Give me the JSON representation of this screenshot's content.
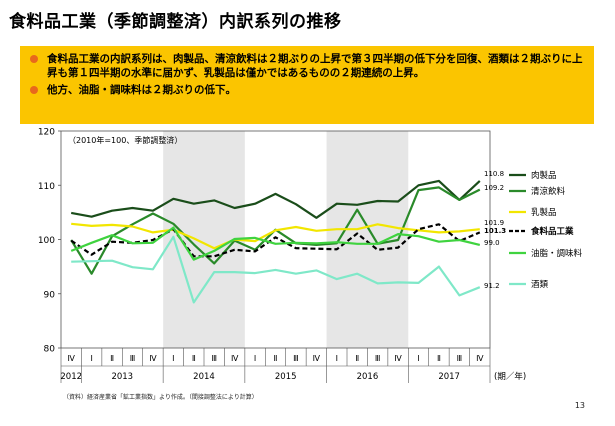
{
  "title": "食料品工業（季節調整済）内訳系列の推移",
  "summary": {
    "bullets": [
      "食料品工業の内訳系列は、肉製品、清涼飲料は２期ぶりの上昇で第３四半期の低下分を回復、酒類は２期ぶりに上昇も第１四半期の水準に届かず、乳製品は僅かではあるものの２期連続の上昇。",
      "他方、油脂・調味料は２期ぶりの低下。"
    ],
    "bullet_color": "#e8681c",
    "background": "#fbc500"
  },
  "chart_data": {
    "type": "line",
    "annotation": "（2010年=100、季節調整済）",
    "ylim": [
      80,
      120
    ],
    "yticks": [
      80,
      90,
      100,
      110,
      120
    ],
    "x": [
      "Ⅳ",
      "Ⅰ",
      "Ⅱ",
      "Ⅲ",
      "Ⅳ",
      "Ⅰ",
      "Ⅱ",
      "Ⅲ",
      "Ⅳ",
      "Ⅰ",
      "Ⅱ",
      "Ⅲ",
      "Ⅳ",
      "Ⅰ",
      "Ⅱ",
      "Ⅲ",
      "Ⅳ",
      "Ⅰ",
      "Ⅱ",
      "Ⅲ",
      "Ⅳ"
    ],
    "years": [
      {
        "label": "2012",
        "start": 0,
        "end": 0
      },
      {
        "label": "2013",
        "start": 1,
        "end": 4
      },
      {
        "label": "2014",
        "start": 5,
        "end": 8
      },
      {
        "label": "2015",
        "start": 9,
        "end": 12
      },
      {
        "label": "2016",
        "start": 13,
        "end": 16
      },
      {
        "label": "2017",
        "start": 17,
        "end": 20
      }
    ],
    "shaded_years": [
      "2014",
      "2016"
    ],
    "axis_unit": "(期／年)",
    "grid": false,
    "legend_position": "right",
    "series": [
      {
        "name": "肉製品",
        "color": "#1a4d1a",
        "dash": false,
        "end_label": "110.8",
        "values": [
          104.9,
          104.2,
          105.3,
          105.8,
          105.3,
          107.5,
          106.6,
          107.2,
          105.8,
          106.6,
          108.4,
          106.5,
          104.0,
          106.6,
          106.4,
          107.1,
          107.0,
          110.0,
          110.8,
          107.3,
          110.8
        ]
      },
      {
        "name": "清涼飲料",
        "color": "#2a8a2a",
        "dash": false,
        "end_label": "109.2",
        "values": [
          99.9,
          93.7,
          100.6,
          102.8,
          104.8,
          102.9,
          99.1,
          95.6,
          99.8,
          98.1,
          101.8,
          99.3,
          99.0,
          99.3,
          105.5,
          99.2,
          99.9,
          109.1,
          109.6,
          107.3,
          109.2
        ]
      },
      {
        "name": "乳製品",
        "color": "#f2e600",
        "dash": false,
        "end_label": "101.9",
        "values": [
          102.9,
          102.5,
          102.7,
          102.4,
          101.3,
          101.8,
          100.2,
          98.4,
          100.0,
          99.7,
          101.7,
          102.3,
          101.6,
          101.9,
          101.9,
          102.8,
          102.1,
          101.7,
          101.3,
          101.5,
          101.9
        ]
      },
      {
        "name": "食料品工業",
        "color": "#000000",
        "dash": true,
        "end_label": "101.3",
        "values": [
          99.8,
          97.2,
          99.6,
          99.4,
          99.9,
          101.9,
          96.9,
          96.9,
          98.1,
          97.8,
          100.4,
          98.4,
          98.3,
          98.2,
          101.1,
          98.1,
          98.5,
          101.9,
          102.8,
          99.7,
          101.3
        ]
      },
      {
        "name": "油脂・調味料",
        "color": "#3fd33f",
        "dash": false,
        "end_label": "99.0",
        "values": [
          97.9,
          99.4,
          100.8,
          99.3,
          99.4,
          102.2,
          96.3,
          97.9,
          100.1,
          100.3,
          99.2,
          99.4,
          99.3,
          99.5,
          99.2,
          99.2,
          101.0,
          100.6,
          99.6,
          99.9,
          99.0
        ]
      },
      {
        "name": "酒類",
        "color": "#7fe8c8",
        "dash": false,
        "end_label": "91.2",
        "values": [
          95.9,
          96.0,
          96.1,
          94.9,
          94.5,
          100.5,
          88.4,
          94.0,
          94.0,
          93.8,
          94.4,
          93.7,
          94.3,
          92.7,
          93.7,
          91.9,
          92.1,
          92.0,
          95.0,
          89.7,
          91.2
        ]
      }
    ]
  },
  "footnote": "（資料）経済産業省「鉱工業指数」より作成。（間接調整法により計算）",
  "page_number": "13"
}
